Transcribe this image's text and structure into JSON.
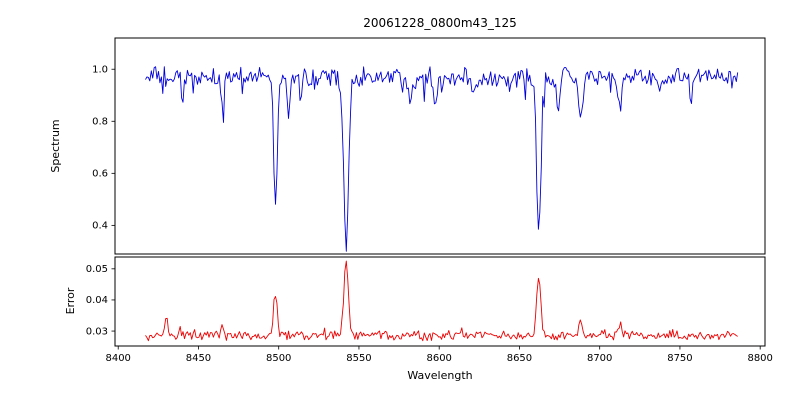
{
  "title": "20061228_0800m43_125",
  "x_axis": {
    "label": "Wavelength",
    "lim": [
      8398,
      8803
    ],
    "ticks": [
      8400,
      8450,
      8500,
      8550,
      8600,
      8650,
      8700,
      8750,
      8800
    ],
    "tick_labels": [
      "8400",
      "8450",
      "8500",
      "8550",
      "8600",
      "8650",
      "8700",
      "8750",
      "8800"
    ]
  },
  "chart_data": [
    {
      "type": "line",
      "name": "spectrum",
      "ylabel": "Spectrum",
      "color": "#0000dd",
      "ylim": [
        0.29,
        1.12
      ],
      "yticks": [
        0.4,
        0.6,
        0.8,
        1.0
      ],
      "ytick_labels": [
        "0.4",
        "0.6",
        "0.8",
        "1.0"
      ],
      "x_start": 8417,
      "x_end": 8786,
      "x_step": 0.9,
      "continuum": 0.97,
      "noise_amplitude": 0.022,
      "absorption_lines": [
        {
          "center": 8498,
          "depth": 0.49,
          "width": 1.6
        },
        {
          "center": 8542,
          "depth": 0.64,
          "width": 2.2
        },
        {
          "center": 8662,
          "depth": 0.6,
          "width": 1.9
        },
        {
          "center": 8440,
          "depth": 0.08,
          "width": 1.2
        },
        {
          "center": 8465,
          "depth": 0.1,
          "width": 1.2
        },
        {
          "center": 8506,
          "depth": 0.12,
          "width": 1.4
        },
        {
          "center": 8514,
          "depth": 0.08,
          "width": 1.2
        },
        {
          "center": 8582,
          "depth": 0.07,
          "width": 1.2
        },
        {
          "center": 8598,
          "depth": 0.11,
          "width": 1.4
        },
        {
          "center": 8621,
          "depth": 0.08,
          "width": 1.2
        },
        {
          "center": 8674,
          "depth": 0.13,
          "width": 1.5
        },
        {
          "center": 8688,
          "depth": 0.18,
          "width": 1.7
        },
        {
          "center": 8713,
          "depth": 0.11,
          "width": 1.4
        },
        {
          "center": 8757,
          "depth": 0.09,
          "width": 1.2
        }
      ]
    },
    {
      "type": "line",
      "name": "error",
      "ylabel": "Error",
      "color": "#ee0000",
      "ylim": [
        0.0252,
        0.0538
      ],
      "yticks": [
        0.03,
        0.04,
        0.05
      ],
      "ytick_labels": [
        "0.03",
        "0.04",
        "0.05"
      ],
      "x_start": 8417,
      "x_end": 8786,
      "x_step": 0.9,
      "baseline": 0.0285,
      "noise_amplitude": 0.0009,
      "peaks": [
        {
          "center": 8498,
          "height": 0.014,
          "width": 1.6
        },
        {
          "center": 8542,
          "height": 0.024,
          "width": 2.0
        },
        {
          "center": 8662,
          "height": 0.019,
          "width": 1.8
        },
        {
          "center": 8430,
          "height": 0.006,
          "width": 1.3
        },
        {
          "center": 8465,
          "height": 0.0035,
          "width": 1.3
        },
        {
          "center": 8688,
          "height": 0.004,
          "width": 1.5
        },
        {
          "center": 8713,
          "height": 0.0035,
          "width": 1.3
        }
      ]
    }
  ]
}
